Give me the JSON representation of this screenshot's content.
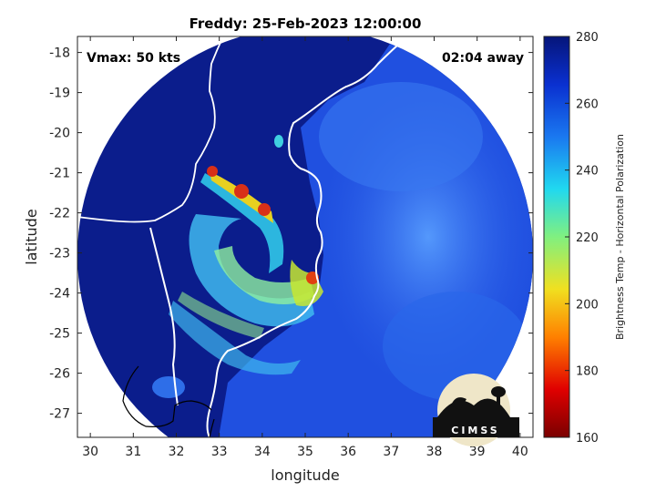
{
  "title": "Freddy: 25-Feb-2023 12:00:00",
  "vmax_label": "Vmax: 50 kts",
  "time_label": "02:04 away",
  "x_axis": {
    "label": "longitude",
    "ticks": [
      "30",
      "31",
      "32",
      "33",
      "34",
      "35",
      "36",
      "37",
      "38",
      "39",
      "40"
    ],
    "range": [
      29.7,
      40.3
    ]
  },
  "y_axis": {
    "label": "latitude",
    "ticks": [
      "-18",
      "-19",
      "-20",
      "-21",
      "-22",
      "-23",
      "-24",
      "-25",
      "-26",
      "-27"
    ],
    "range": [
      -27.6,
      -17.6
    ]
  },
  "colorbar": {
    "label": "Brightness Temp - Horizontal Polarization",
    "ticks": [
      "280",
      "260",
      "240",
      "220",
      "200",
      "180",
      "160"
    ],
    "range": [
      160,
      280
    ]
  },
  "logo": {
    "text": "CIMSS"
  },
  "colors": {
    "background_cold": "#0a1a7a",
    "mid_blue": "#1e5fe6",
    "cyan": "#35c8e0",
    "yellow": "#e8e020",
    "red": "#d8281a"
  }
}
